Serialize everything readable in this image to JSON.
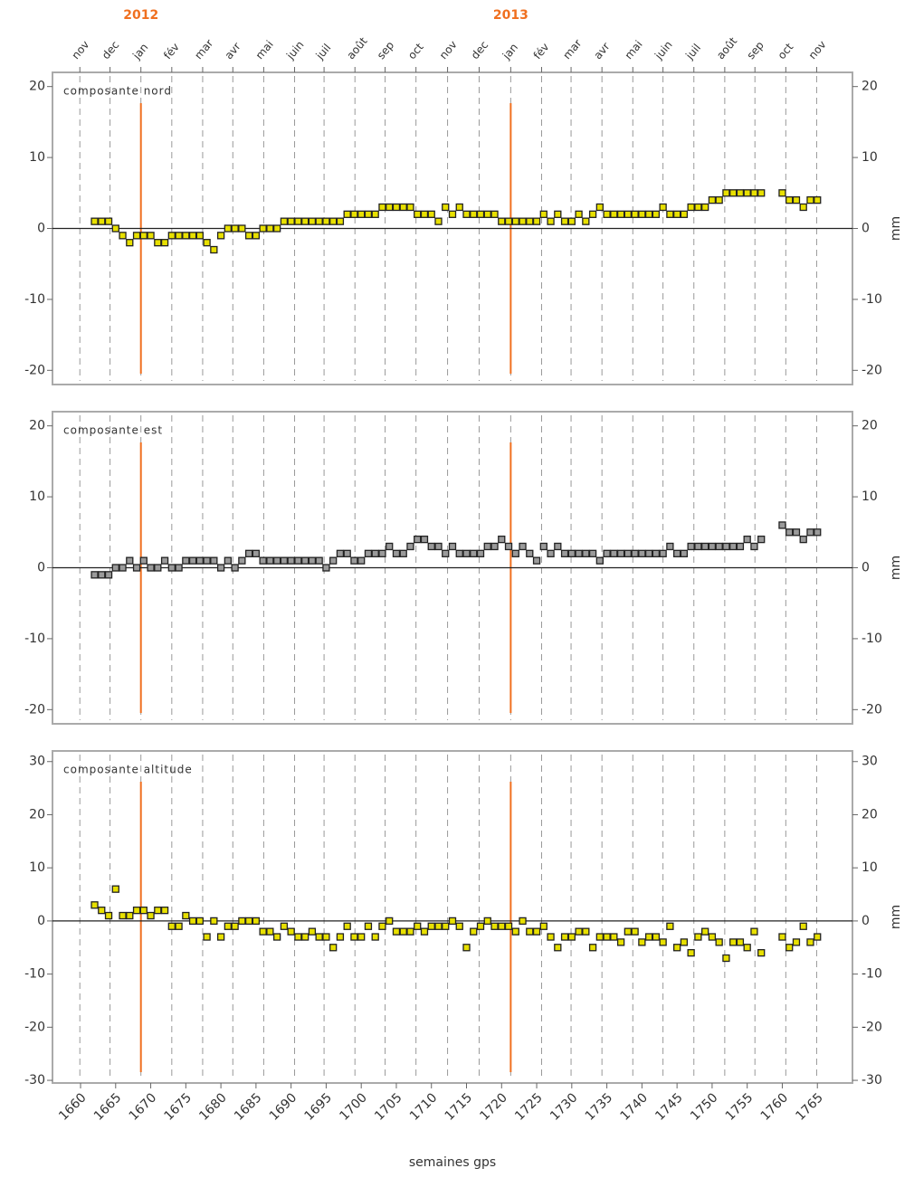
{
  "chart_data": [
    {
      "type": "scatter",
      "title": "composante nord",
      "ylabel": "mm",
      "color": "#e8e000",
      "xlim": [
        1656,
        1770
      ],
      "ylim": [
        -22,
        22
      ],
      "yticks": [
        -20,
        -10,
        0,
        10,
        20
      ],
      "x2ticks": [
        {
          "value": 1659.9,
          "label": "nov"
        },
        {
          "value": 1664.2,
          "label": "dec"
        },
        {
          "value": 1668.6,
          "label": "jan"
        },
        {
          "value": 1673.0,
          "label": "fév"
        },
        {
          "value": 1677.4,
          "label": "mar"
        },
        {
          "value": 1681.7,
          "label": "avr"
        },
        {
          "value": 1686.1,
          "label": "mai"
        },
        {
          "value": 1690.5,
          "label": "juin"
        },
        {
          "value": 1694.7,
          "label": "juil"
        },
        {
          "value": 1699.1,
          "label": "août"
        },
        {
          "value": 1703.4,
          "label": "sep"
        },
        {
          "value": 1707.8,
          "label": "oct"
        },
        {
          "value": 1712.3,
          "label": "nov"
        },
        {
          "value": 1716.8,
          "label": "dec"
        },
        {
          "value": 1721.3,
          "label": "jan"
        },
        {
          "value": 1725.7,
          "label": "fév"
        },
        {
          "value": 1729.9,
          "label": "mar"
        },
        {
          "value": 1734.3,
          "label": "avr"
        },
        {
          "value": 1738.7,
          "label": "mai"
        },
        {
          "value": 1743.0,
          "label": "juin"
        },
        {
          "value": 1747.4,
          "label": "juil"
        },
        {
          "value": 1751.8,
          "label": "août"
        },
        {
          "value": 1756.1,
          "label": "sep"
        },
        {
          "value": 1760.5,
          "label": "oct"
        },
        {
          "value": 1764.9,
          "label": "nov"
        }
      ],
      "year_markers": [
        {
          "value": 1668.6,
          "label": "2012"
        },
        {
          "value": 1721.3,
          "label": "2013"
        }
      ],
      "x": [
        1662,
        1663,
        1664,
        1665,
        1666,
        1667,
        1668,
        1669,
        1670,
        1671,
        1672,
        1673,
        1674,
        1675,
        1676,
        1677,
        1678,
        1679,
        1680,
        1681,
        1682,
        1683,
        1684,
        1685,
        1686,
        1687,
        1688,
        1689,
        1690,
        1691,
        1692,
        1693,
        1694,
        1695,
        1696,
        1697,
        1698,
        1699,
        1700,
        1701,
        1702,
        1703,
        1704,
        1705,
        1706,
        1707,
        1708,
        1709,
        1710,
        1711,
        1712,
        1713,
        1714,
        1715,
        1716,
        1717,
        1718,
        1719,
        1720,
        1721,
        1722,
        1723,
        1724,
        1725,
        1726,
        1727,
        1728,
        1729,
        1730,
        1731,
        1732,
        1733,
        1734,
        1735,
        1736,
        1737,
        1738,
        1739,
        1740,
        1741,
        1742,
        1743,
        1744,
        1745,
        1746,
        1747,
        1748,
        1749,
        1750,
        1751,
        1752,
        1753,
        1754,
        1755,
        1756,
        1757,
        1758,
        1759,
        1760,
        1761,
        1762,
        1763,
        1764,
        1765
      ],
      "values": [
        1,
        1,
        1,
        0,
        -1,
        -2,
        -1,
        -1,
        -1,
        -2,
        -2,
        -1,
        -1,
        -1,
        -1,
        -1,
        -2,
        -3,
        -1,
        0,
        0,
        0,
        -1,
        -1,
        0,
        0,
        0,
        1,
        1,
        1,
        1,
        1,
        1,
        1,
        1,
        1,
        2,
        2,
        2,
        2,
        2,
        3,
        3,
        3,
        3,
        3,
        2,
        2,
        2,
        1,
        3,
        2,
        3,
        2,
        2,
        2,
        2,
        2,
        1,
        1,
        1,
        1,
        1,
        1,
        2,
        1,
        2,
        1,
        1,
        2,
        1,
        2,
        3,
        2,
        2,
        2,
        2,
        2,
        2,
        2,
        2,
        3,
        2,
        2,
        2,
        3,
        3,
        3,
        4,
        4,
        5,
        5,
        5,
        5,
        5,
        5,
        null,
        null,
        5,
        4,
        4,
        3,
        4,
        4
      ]
    },
    {
      "type": "scatter",
      "title": "composante est",
      "ylabel": "mm",
      "color": "#9a9a9a",
      "xlim": [
        1656,
        1770
      ],
      "ylim": [
        -22,
        22
      ],
      "yticks": [
        -20,
        -10,
        0,
        10,
        20
      ],
      "x": [
        1662,
        1663,
        1664,
        1665,
        1666,
        1667,
        1668,
        1669,
        1670,
        1671,
        1672,
        1673,
        1674,
        1675,
        1676,
        1677,
        1678,
        1679,
        1680,
        1681,
        1682,
        1683,
        1684,
        1685,
        1686,
        1687,
        1688,
        1689,
        1690,
        1691,
        1692,
        1693,
        1694,
        1695,
        1696,
        1697,
        1698,
        1699,
        1700,
        1701,
        1702,
        1703,
        1704,
        1705,
        1706,
        1707,
        1708,
        1709,
        1710,
        1711,
        1712,
        1713,
        1714,
        1715,
        1716,
        1717,
        1718,
        1719,
        1720,
        1721,
        1722,
        1723,
        1724,
        1725,
        1726,
        1727,
        1728,
        1729,
        1730,
        1731,
        1732,
        1733,
        1734,
        1735,
        1736,
        1737,
        1738,
        1739,
        1740,
        1741,
        1742,
        1743,
        1744,
        1745,
        1746,
        1747,
        1748,
        1749,
        1750,
        1751,
        1752,
        1753,
        1754,
        1755,
        1756,
        1757,
        1758,
        1759,
        1760,
        1761,
        1762,
        1763,
        1764,
        1765
      ],
      "values": [
        -1,
        -1,
        -1,
        0,
        0,
        1,
        0,
        1,
        0,
        0,
        1,
        0,
        0,
        1,
        1,
        1,
        1,
        1,
        0,
        1,
        0,
        1,
        2,
        2,
        1,
        1,
        1,
        1,
        1,
        1,
        1,
        1,
        1,
        0,
        1,
        2,
        2,
        1,
        1,
        2,
        2,
        2,
        3,
        2,
        2,
        3,
        4,
        4,
        3,
        3,
        2,
        3,
        2,
        2,
        2,
        2,
        3,
        3,
        4,
        3,
        2,
        3,
        2,
        1,
        3,
        2,
        3,
        2,
        2,
        2,
        2,
        2,
        1,
        2,
        2,
        2,
        2,
        2,
        2,
        2,
        2,
        2,
        3,
        2,
        2,
        3,
        3,
        3,
        3,
        3,
        3,
        3,
        3,
        4,
        3,
        4,
        null,
        null,
        6,
        5,
        5,
        4,
        5,
        5
      ]
    },
    {
      "type": "scatter",
      "title": "composante altitude",
      "ylabel": "mm",
      "xlabel": "semaines gps",
      "color": "#e8e000",
      "xlim": [
        1656,
        1770
      ],
      "ylim": [
        -30.5,
        32
      ],
      "yticks": [
        -30,
        -20,
        -10,
        0,
        10,
        20,
        30
      ],
      "xticks": [
        1660,
        1665,
        1670,
        1675,
        1680,
        1685,
        1690,
        1695,
        1700,
        1705,
        1710,
        1715,
        1720,
        1725,
        1730,
        1735,
        1740,
        1745,
        1750,
        1755,
        1760,
        1765
      ],
      "x": [
        1662,
        1663,
        1664,
        1665,
        1666,
        1667,
        1668,
        1669,
        1670,
        1671,
        1672,
        1673,
        1674,
        1675,
        1676,
        1677,
        1678,
        1679,
        1680,
        1681,
        1682,
        1683,
        1684,
        1685,
        1686,
        1687,
        1688,
        1689,
        1690,
        1691,
        1692,
        1693,
        1694,
        1695,
        1696,
        1697,
        1698,
        1699,
        1700,
        1701,
        1702,
        1703,
        1704,
        1705,
        1706,
        1707,
        1708,
        1709,
        1710,
        1711,
        1712,
        1713,
        1714,
        1715,
        1716,
        1717,
        1718,
        1719,
        1720,
        1721,
        1722,
        1723,
        1724,
        1725,
        1726,
        1727,
        1728,
        1729,
        1730,
        1731,
        1732,
        1733,
        1734,
        1735,
        1736,
        1737,
        1738,
        1739,
        1740,
        1741,
        1742,
        1743,
        1744,
        1745,
        1746,
        1747,
        1748,
        1749,
        1750,
        1751,
        1752,
        1753,
        1754,
        1755,
        1756,
        1757,
        1758,
        1759,
        1760,
        1761,
        1762,
        1763,
        1764,
        1765
      ],
      "values": [
        3,
        2,
        1,
        6,
        1,
        1,
        2,
        2,
        1,
        2,
        2,
        -1,
        -1,
        1,
        0,
        0,
        -3,
        0,
        -3,
        -1,
        -1,
        0,
        0,
        0,
        -2,
        -2,
        -3,
        -1,
        -2,
        -3,
        -3,
        -2,
        -3,
        -3,
        -5,
        -3,
        -1,
        -3,
        -3,
        -1,
        -3,
        -1,
        0,
        -2,
        -2,
        -2,
        -1,
        -2,
        -1,
        -1,
        -1,
        0,
        -1,
        -5,
        -2,
        -1,
        0,
        -1,
        -1,
        -1,
        -2,
        0,
        -2,
        -2,
        -1,
        -3,
        -5,
        -3,
        -3,
        -2,
        -2,
        -5,
        -3,
        -3,
        -3,
        -4,
        -2,
        -2,
        -4,
        -3,
        -3,
        -4,
        -1,
        -5,
        -4,
        -6,
        -3,
        -2,
        -3,
        -4,
        -7,
        -4,
        -4,
        -5,
        -2,
        -6,
        null,
        null,
        -3,
        -5,
        -4,
        -1,
        -4,
        -3
      ]
    }
  ]
}
